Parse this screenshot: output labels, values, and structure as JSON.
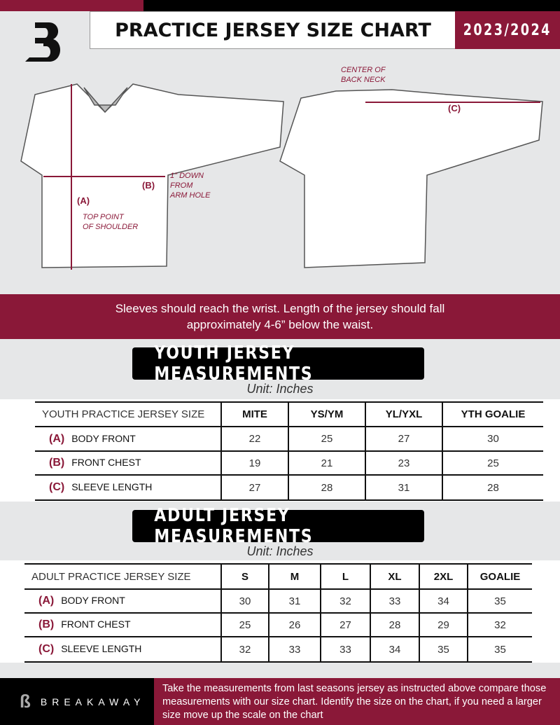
{
  "header": {
    "title": "PRACTICE JERSEY SIZE CHART",
    "season": "2023/2024",
    "logo_text": "B"
  },
  "diagram": {
    "a": "(A)",
    "b": "(B)",
    "c": "(C)",
    "top_point": "TOP POINT\nOF SHOULDER",
    "down": "1\" DOWN\nFROM\nARM HOLE",
    "center": "CENTER OF\nBACK NECK"
  },
  "note": {
    "line1": "Sleeves should reach the wrist. Length of the jersey should fall",
    "line2": "approximately 4-6” below the waist."
  },
  "youth": {
    "title": "YOUTH JERSEY MEASUREMENTS",
    "unit": "Unit: Inches",
    "header": [
      "YOUTH PRACTICE JERSEY SIZE",
      "MITE",
      "YS/YM",
      "YL/YXL",
      "YTH GOALIE"
    ],
    "rows": [
      {
        "letter": "(A)",
        "label": "BODY FRONT",
        "values": [
          "22",
          "25",
          "27",
          "30"
        ]
      },
      {
        "letter": "(B)",
        "label": "FRONT CHEST",
        "values": [
          "19",
          "21",
          "23",
          "25"
        ]
      },
      {
        "letter": "(C)",
        "label": "SLEEVE LENGTH",
        "values": [
          "27",
          "28",
          "31",
          "28"
        ]
      }
    ]
  },
  "adult": {
    "title": "ADULT JERSEY MEASUREMENTS",
    "unit": "Unit: Inches",
    "header": [
      "ADULT PRACTICE JERSEY SIZE",
      "S",
      "M",
      "L",
      "XL",
      "2XL",
      "GOALIE"
    ],
    "rows": [
      {
        "letter": "(A)",
        "label": "BODY FRONT",
        "values": [
          "30",
          "31",
          "32",
          "33",
          "34",
          "35"
        ]
      },
      {
        "letter": "(B)",
        "label": "FRONT CHEST",
        "values": [
          "25",
          "26",
          "27",
          "28",
          "29",
          "32"
        ]
      },
      {
        "letter": "(C)",
        "label": "SLEEVE LENGTH",
        "values": [
          "32",
          "33",
          "33",
          "34",
          "35",
          "35"
        ]
      }
    ]
  },
  "footer": {
    "brand": "BREAKAWAY",
    "text": "Take the measurements from last seasons jersey as instructed above compare those measurements  with our size chart. Identify the size on the chart, if you need a larger size move up the scale on the chart"
  },
  "colors": {
    "accent": "#8a1838",
    "background": "#e6e7e8"
  }
}
